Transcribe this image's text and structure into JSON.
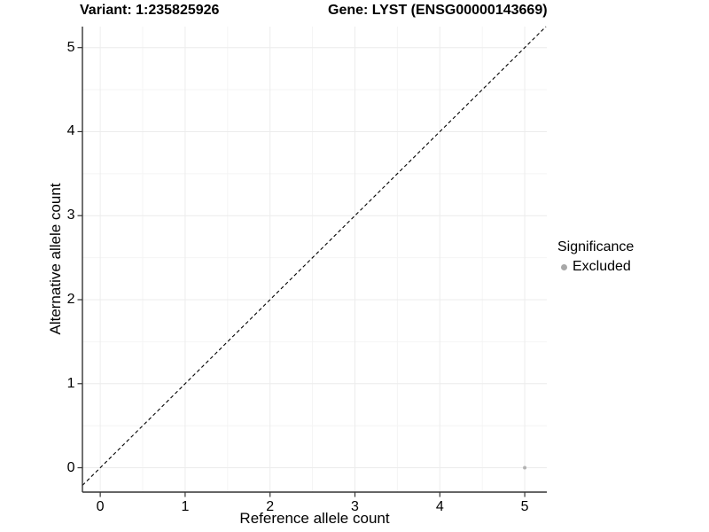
{
  "figure": {
    "title_left": "Variant: 1:235825926",
    "title_right": "Gene: LYST (ENSG00000143669)"
  },
  "axes": {
    "x_label": "Reference allele count",
    "y_label": "Alternative allele count"
  },
  "legend": {
    "title": "Significance",
    "items": [
      {
        "label": "Excluded",
        "color": "#a8a8a8",
        "shape": "circle"
      }
    ]
  },
  "chart_data": {
    "type": "scatter",
    "title": "Variant: 1:235825926    Gene: LYST (ENSG00000143669)",
    "xlabel": "Reference allele count",
    "ylabel": "Alternative allele count",
    "xlim": [
      -0.21,
      5.26
    ],
    "ylim": [
      -0.29,
      5.25
    ],
    "x_ticks": [
      0,
      1,
      2,
      3,
      4,
      5
    ],
    "y_ticks": [
      0,
      1,
      2,
      3,
      4,
      5
    ],
    "grid": {
      "minor_step": 0.5,
      "major_color": "#ececec",
      "minor_color": "#f4f4f4"
    },
    "identity_line": {
      "style": "dashed",
      "slope": 1,
      "intercept": 0,
      "color": "#000000",
      "dash": [
        4,
        3
      ]
    },
    "series": [
      {
        "name": "Excluded",
        "color": "#b3b3b3",
        "point_radius": 2,
        "points": [
          {
            "x": 5,
            "y": 0
          }
        ]
      }
    ],
    "legend_position": "right"
  },
  "colors": {
    "background": "#ffffff",
    "axis_line": "#333333",
    "tick_mark": "#333333",
    "text": "#000000"
  }
}
